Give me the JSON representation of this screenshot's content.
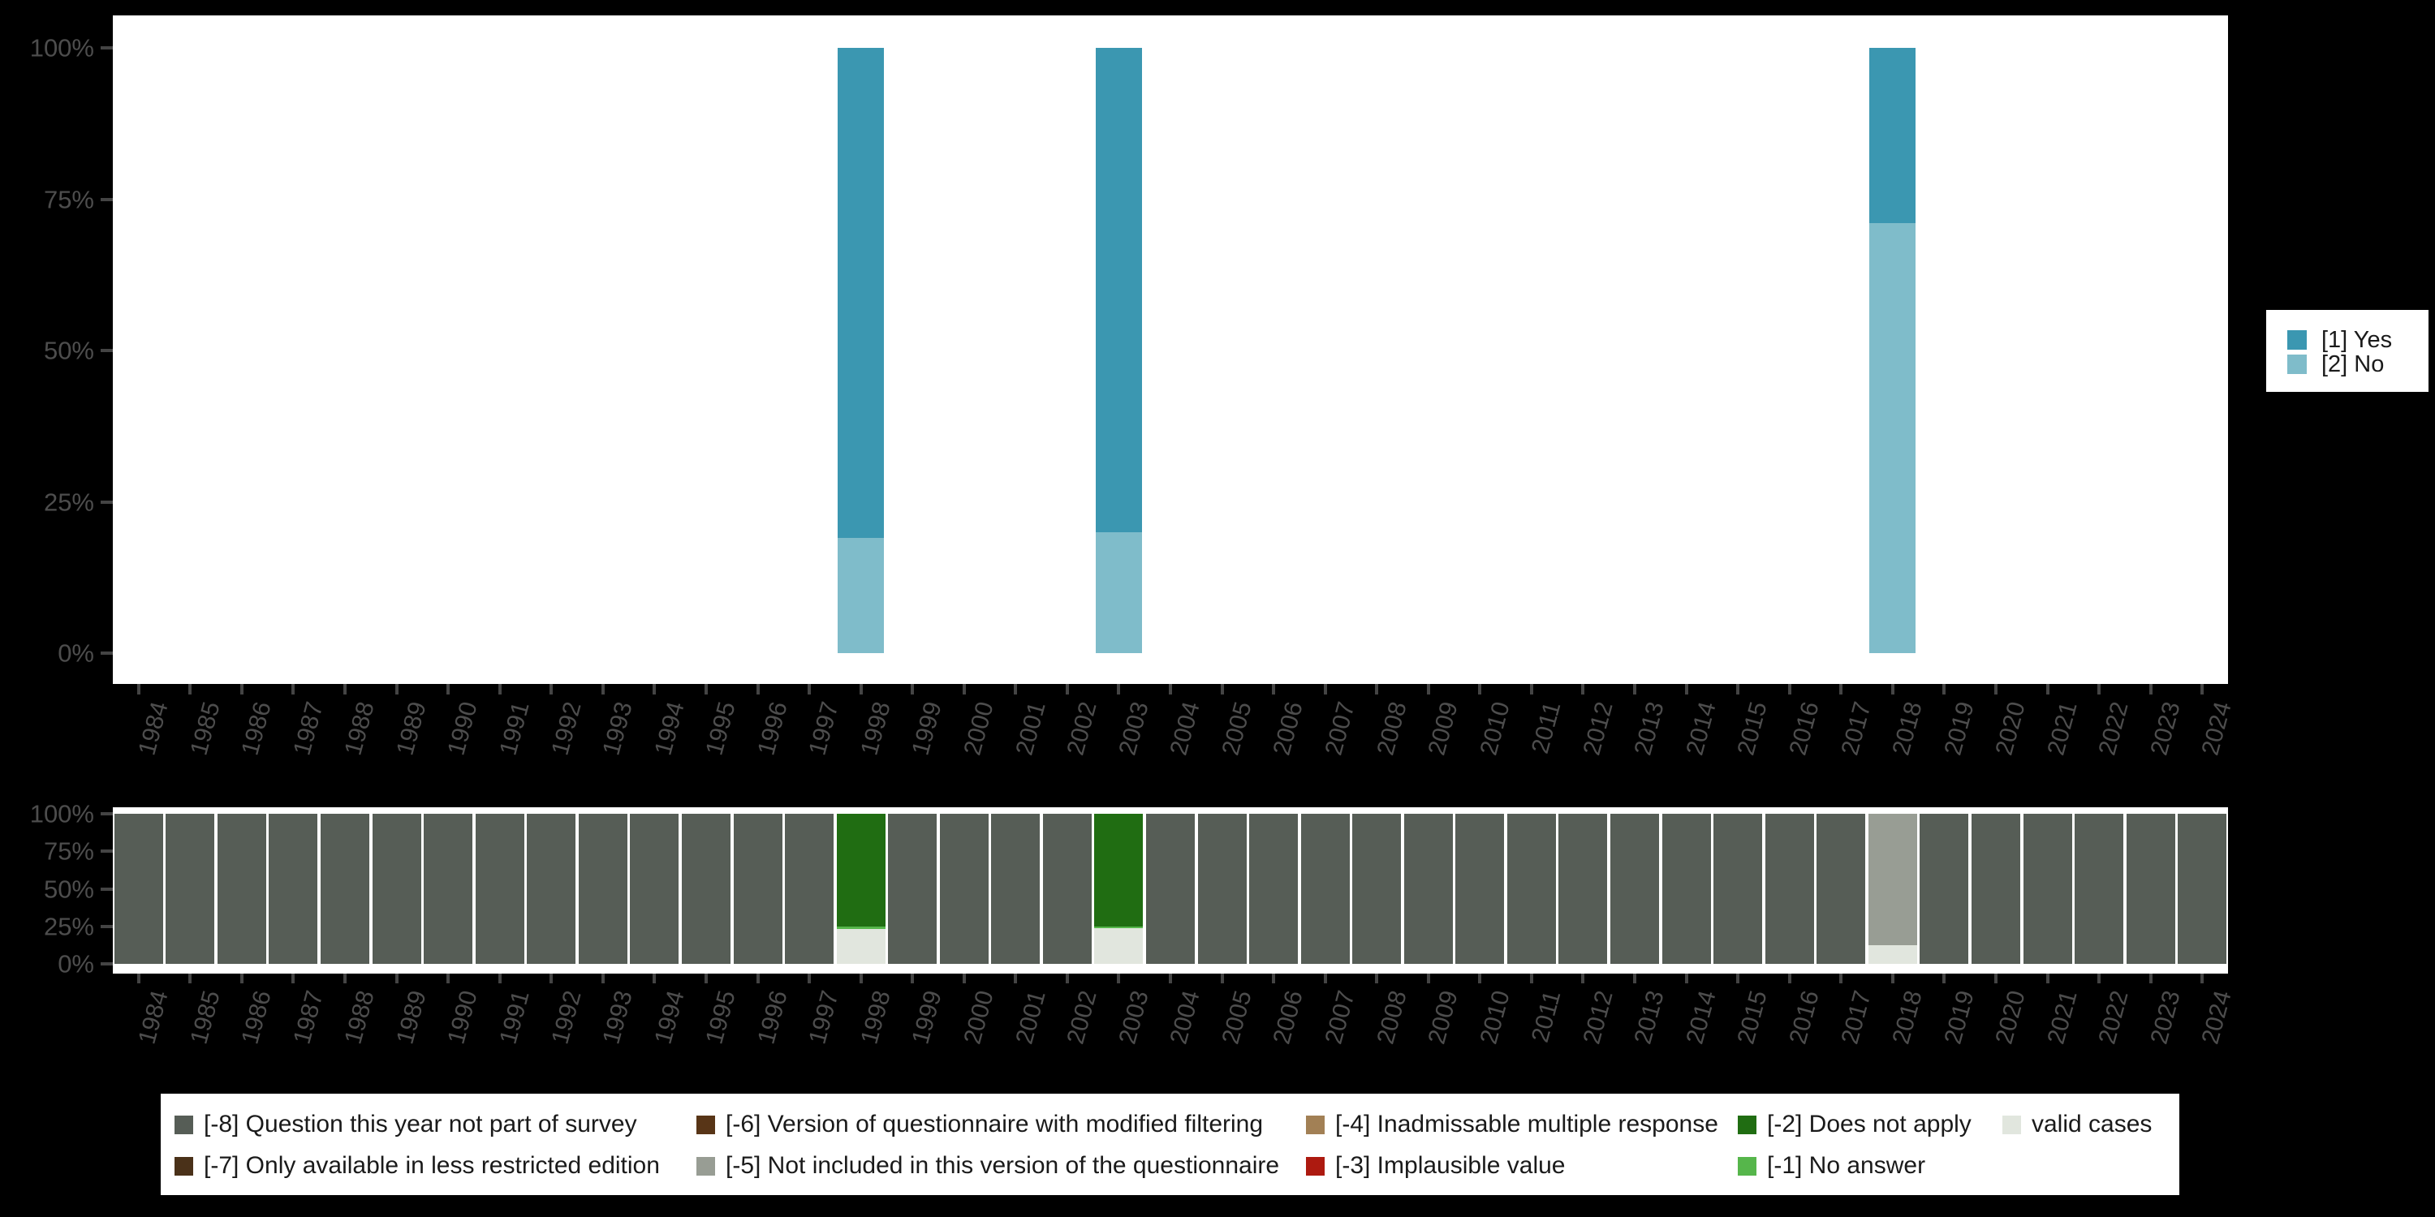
{
  "app": {
    "background_color": "#000000",
    "panel_color": "#ffffff"
  },
  "colors": {
    "yes": "#3b97b1",
    "no": "#7fbcca",
    "m8": "#565d56",
    "m7": "#4a3119",
    "m6": "#583517",
    "m5": "#989d94",
    "m4": "#a28055",
    "m3": "#ad1a10",
    "m2": "#206d12",
    "m1": "#56b64b",
    "valid": "#e1e6de",
    "axis_text": "#4d4d4d",
    "tick": "#444444",
    "legend_text": "#1a1a1a"
  },
  "top_legend": {
    "items": [
      {
        "label": "[1] Yes",
        "color_key": "yes"
      },
      {
        "label": "[2] No",
        "color_key": "no"
      }
    ]
  },
  "bottom_legend": {
    "items": [
      {
        "label": "[-8] Question this year not part of survey",
        "color_key": "m8"
      },
      {
        "label": "[-7] Only available in less restricted edition",
        "color_key": "m7"
      },
      {
        "label": "[-6] Version of questionnaire with modified filtering",
        "color_key": "m6"
      },
      {
        "label": "[-5] Not included in this version of the questionnaire",
        "color_key": "m5"
      },
      {
        "label": "[-4] Inadmissable multiple response",
        "color_key": "m4"
      },
      {
        "label": "[-3] Implausible value",
        "color_key": "m3"
      },
      {
        "label": "[-2] Does not apply",
        "color_key": "m2"
      },
      {
        "label": "[-1] No answer",
        "color_key": "m1"
      },
      {
        "label": "valid cases",
        "color_key": "valid"
      }
    ]
  },
  "chart_data": [
    {
      "id": "answer-percentages",
      "type": "bar",
      "stacked": true,
      "title": "",
      "xlabel": "",
      "ylabel": "",
      "ylim": [
        0,
        100
      ],
      "grid": false,
      "legend_position": "right",
      "y_ticks": [
        "0%",
        "25%",
        "50%",
        "75%",
        "100%"
      ],
      "x_categories": [
        "1984",
        "1985",
        "1986",
        "1987",
        "1988",
        "1989",
        "1990",
        "1991",
        "1992",
        "1993",
        "1994",
        "1995",
        "1996",
        "1997",
        "1998",
        "1999",
        "2000",
        "2001",
        "2002",
        "2003",
        "2004",
        "2005",
        "2006",
        "2007",
        "2008",
        "2009",
        "2010",
        "2011",
        "2012",
        "2013",
        "2014",
        "2015",
        "2016",
        "2017",
        "2018",
        "2019",
        "2020",
        "2021",
        "2022",
        "2023",
        "2024"
      ],
      "series": [
        {
          "name": "[1] Yes",
          "color_key": "yes",
          "values_by_year": {
            "1998": 81,
            "2003": 80,
            "2018": 29
          }
        },
        {
          "name": "[2] No",
          "color_key": "no",
          "values_by_year": {
            "1998": 19,
            "2003": 20,
            "2018": 71
          }
        }
      ],
      "bars_bottom_to_top": {
        "1998": [
          {
            "key": "no",
            "pct": 19
          },
          {
            "key": "yes",
            "pct": 81
          }
        ],
        "2003": [
          {
            "key": "no",
            "pct": 20
          },
          {
            "key": "yes",
            "pct": 80
          }
        ],
        "2018": [
          {
            "key": "no",
            "pct": 71
          },
          {
            "key": "yes",
            "pct": 29
          }
        ]
      }
    },
    {
      "id": "missing-values",
      "type": "bar",
      "stacked": true,
      "title": "",
      "xlabel": "",
      "ylabel": "",
      "ylim": [
        0,
        100
      ],
      "grid": false,
      "legend_position": "bottom",
      "y_ticks": [
        "0%",
        "25%",
        "50%",
        "75%",
        "100%"
      ],
      "x_categories": [
        "1984",
        "1985",
        "1986",
        "1987",
        "1988",
        "1989",
        "1990",
        "1991",
        "1992",
        "1993",
        "1994",
        "1995",
        "1996",
        "1997",
        "1998",
        "1999",
        "2000",
        "2001",
        "2002",
        "2003",
        "2004",
        "2005",
        "2006",
        "2007",
        "2008",
        "2009",
        "2010",
        "2011",
        "2012",
        "2013",
        "2014",
        "2015",
        "2016",
        "2017",
        "2018",
        "2019",
        "2020",
        "2021",
        "2022",
        "2023",
        "2024"
      ],
      "default_segments_bottom_to_top": [
        {
          "key": "m8",
          "pct": 100
        }
      ],
      "bars_bottom_to_top": {
        "1998": [
          {
            "key": "valid",
            "pct": 23.5
          },
          {
            "key": "m1",
            "pct": 1.3
          },
          {
            "key": "m2",
            "pct": 75.2
          }
        ],
        "2003": [
          {
            "key": "valid",
            "pct": 24.0
          },
          {
            "key": "m1",
            "pct": 1.1
          },
          {
            "key": "m2",
            "pct": 74.9
          }
        ],
        "2018": [
          {
            "key": "valid",
            "pct": 12.4
          },
          {
            "key": "m5",
            "pct": 87.6
          }
        ]
      }
    }
  ]
}
